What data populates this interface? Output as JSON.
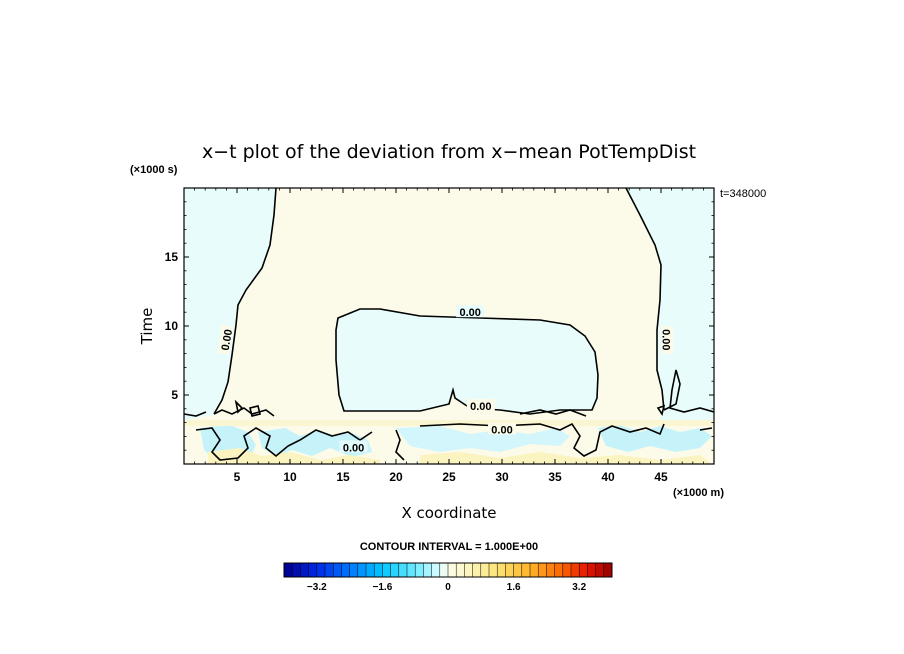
{
  "chart_data": {
    "type": "heatmap",
    "title": "x−t plot of the deviation from x−mean PotTempDist",
    "xlabel": "X coordinate",
    "ylabel": "Time",
    "x_unit": "(×1000 m)",
    "y_unit": "(×1000 s)",
    "time_stamp": "t=348000",
    "xlim": [
      0,
      50
    ],
    "ylim": [
      0,
      20
    ],
    "xticks": [
      5,
      10,
      15,
      20,
      25,
      30,
      35,
      40,
      45
    ],
    "yticks": [
      5,
      10,
      15
    ],
    "contour_interval_text": "CONTOUR INTERVAL = 1.000E+00",
    "contour_labels": [
      {
        "text": "0.00",
        "x": 27,
        "y": 11.0
      },
      {
        "text": "0.00",
        "x": 28,
        "y": 4.2
      },
      {
        "text": "0.00",
        "x": 30,
        "y": 2.5
      },
      {
        "text": "0.00",
        "x": 16,
        "y": 1.2
      },
      {
        "text": "0.00",
        "x": 4,
        "y": 9.0
      },
      {
        "text": "0.00",
        "x": 45.5,
        "y": 9.0
      }
    ],
    "colorbar": {
      "min": -4.0,
      "max": 4.0,
      "step": 0.2,
      "tick_labels": [
        "−3.2",
        "−1.6",
        "0",
        "1.6",
        "3.2"
      ],
      "tick_values": [
        -3.2,
        -1.6,
        0,
        1.6,
        3.2
      ]
    },
    "regions": [
      {
        "name": "upper-left",
        "value": -0.1
      },
      {
        "name": "upper-center",
        "value": 0.1
      },
      {
        "name": "central-cell",
        "value": -0.1
      },
      {
        "name": "upper-right",
        "value": -0.1
      },
      {
        "name": "lower-band",
        "value": 0.2
      }
    ],
    "colors": {
      "negative_light": "#e8fcfc",
      "positive_light": "#fcfbea",
      "negative_mid": "#b8f0fa",
      "positive_mid": "#fbf3c0"
    }
  }
}
